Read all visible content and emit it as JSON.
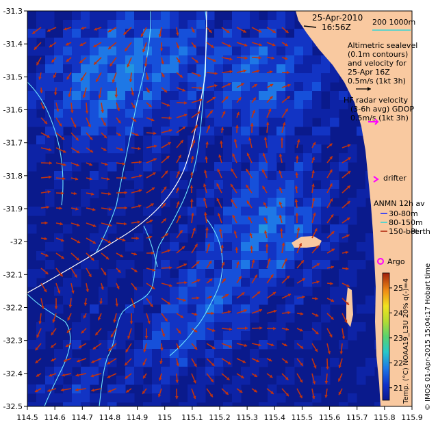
{
  "map": {
    "date": "25-Apr-2010",
    "time": "16:56Z",
    "scale_bar_label": "200  1000m",
    "altimetry_lines": [
      "Altimetric sealevel",
      "(0.1m contours)",
      "and velocity for",
      "25-Apr 16Z",
      "0.5m/s (1kt 3h)"
    ],
    "hf_radar_lines": [
      "HF radar velocity",
      "(3-6h avg) GDOP",
      "0.5m/s (1kt 3h)"
    ],
    "drifter_label": "drifter",
    "anmn_title": "ANMN 12h av",
    "anmn_items": [
      {
        "label": "30-80m",
        "color": "#1a2cff"
      },
      {
        "label": "80-150m",
        "color": "#33d6d6"
      },
      {
        "label": "150-bot",
        "color": "#b02a10"
      }
    ],
    "place_label": "Perth",
    "argo_label": "Argo",
    "colorbar_label": "Temp. (°C) NOAA19_L3U 20% q(-)=4",
    "colorbar_ticks": [
      21,
      22,
      23,
      24,
      25
    ],
    "colorbar_range": [
      20.5,
      25.6
    ],
    "credit": "© IMOS 01-Apr-2015 15:04:17 Hobart time",
    "xlim": [
      114.5,
      115.9
    ],
    "ylim": [
      -32.5,
      -31.3
    ],
    "x_ticks": [
      "114.5",
      "114.6",
      "114.7",
      "114.8",
      "114.9",
      "115",
      "115.1",
      "115.2",
      "115.3",
      "115.4",
      "115.5",
      "115.6",
      "115.7",
      "115.8",
      "115.9"
    ],
    "y_ticks": [
      "-31.3",
      "-31.4",
      "-31.5",
      "-31.6",
      "-31.7",
      "-31.8",
      "-31.9",
      "-32",
      "-32.1",
      "-32.2",
      "-32.3",
      "-32.4",
      "-32.5"
    ],
    "colors": {
      "land": "#f9c9a0",
      "ocean_dark": "#0a1a8c",
      "arrow": "#c2330e",
      "contour": "#6fe6ff",
      "magenta": "#ff00ff"
    }
  }
}
